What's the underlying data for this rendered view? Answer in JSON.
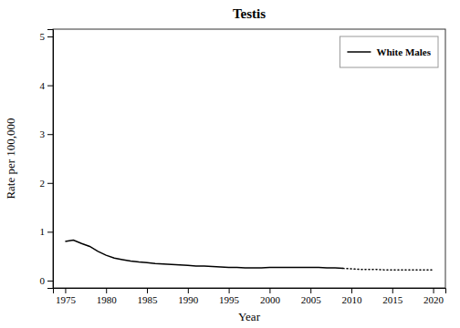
{
  "chart_data": {
    "type": "line",
    "title": "Testis",
    "x_label": "Year",
    "y_label": "Rate per 100,000",
    "xlim": [
      1973.5,
      2021.5
    ],
    "ylim": [
      -0.15,
      5.15
    ],
    "xticks": [
      1975,
      1980,
      1985,
      1990,
      1995,
      2000,
      2005,
      2010,
      2015,
      2020
    ],
    "yticks": [
      0,
      1,
      2,
      3,
      4,
      5
    ],
    "grid": false,
    "legend": "upper right",
    "series": [
      {
        "name": "White Males",
        "color": "#000000",
        "line_style": "solid",
        "x": [
          1975,
          1976,
          1977,
          1978,
          1979,
          1980,
          1981,
          1982,
          1983,
          1984,
          1985,
          1986,
          1987,
          1988,
          1989,
          1990,
          1991,
          1992,
          1993,
          1994,
          1995,
          1996,
          1997,
          1998,
          1999,
          2000,
          2001,
          2002,
          2003,
          2004,
          2005,
          2006,
          2007,
          2008,
          2009
        ],
        "values": [
          0.8,
          0.83,
          0.76,
          0.7,
          0.6,
          0.52,
          0.46,
          0.43,
          0.4,
          0.38,
          0.37,
          0.35,
          0.34,
          0.33,
          0.32,
          0.31,
          0.3,
          0.3,
          0.29,
          0.28,
          0.27,
          0.27,
          0.26,
          0.26,
          0.26,
          0.27,
          0.27,
          0.27,
          0.27,
          0.27,
          0.27,
          0.27,
          0.26,
          0.26,
          0.25
        ]
      },
      {
        "color": "#000000",
        "line_style": "dotted",
        "x": [
          2009,
          2010,
          2011,
          2012,
          2013,
          2014,
          2015,
          2016,
          2017,
          2018,
          2019,
          2020
        ],
        "values": [
          0.25,
          0.24,
          0.23,
          0.23,
          0.23,
          0.22,
          0.22,
          0.22,
          0.22,
          0.22,
          0.22,
          0.22
        ]
      }
    ]
  }
}
